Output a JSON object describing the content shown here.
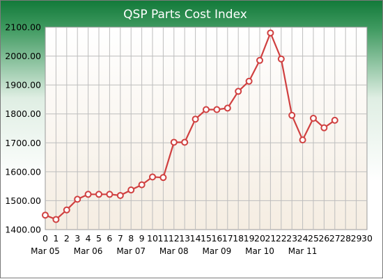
{
  "chart_data": {
    "type": "line",
    "title": "QSP Parts Cost Index",
    "xlabel": "",
    "ylabel": "",
    "xlim": [
      0,
      30
    ],
    "ylim": [
      1400,
      2100
    ],
    "x_ticks": [
      0,
      1,
      2,
      3,
      4,
      5,
      6,
      7,
      8,
      9,
      10,
      11,
      12,
      13,
      14,
      15,
      16,
      17,
      18,
      19,
      20,
      21,
      22,
      23,
      24,
      25,
      26,
      27,
      28,
      29,
      30
    ],
    "y_ticks": [
      1400,
      1500,
      1600,
      1700,
      1800,
      1900,
      2000,
      2100
    ],
    "y_tick_labels": [
      "1400.00",
      "1500.00",
      "1600.00",
      "1700.00",
      "1800.00",
      "1900.00",
      "2000.00",
      "2100.00"
    ],
    "category_labels": [
      {
        "x": 0,
        "label": "Mar 05"
      },
      {
        "x": 4,
        "label": "Mar 06"
      },
      {
        "x": 8,
        "label": "Mar 07"
      },
      {
        "x": 12,
        "label": "Mar 08"
      },
      {
        "x": 16,
        "label": "Mar 09"
      },
      {
        "x": 20,
        "label": "Mar 10"
      },
      {
        "x": 24,
        "label": "Mar 11"
      }
    ],
    "grid": true,
    "legend": "none",
    "series": [
      {
        "x": [
          0,
          1,
          2,
          3,
          4,
          5,
          6,
          7,
          8,
          9,
          10,
          11,
          12,
          13,
          14,
          15,
          16,
          17,
          18,
          19,
          20,
          21,
          22,
          23,
          24,
          25,
          26,
          27
        ],
        "values": [
          1450,
          1435,
          1468,
          1505,
          1522,
          1522,
          1522,
          1518,
          1537,
          1555,
          1582,
          1580,
          1702,
          1702,
          1782,
          1815,
          1815,
          1820,
          1878,
          1913,
          1985,
          2080,
          1990,
          1795,
          1710,
          1785,
          1752,
          1778
        ],
        "color": "#d04040"
      }
    ]
  }
}
